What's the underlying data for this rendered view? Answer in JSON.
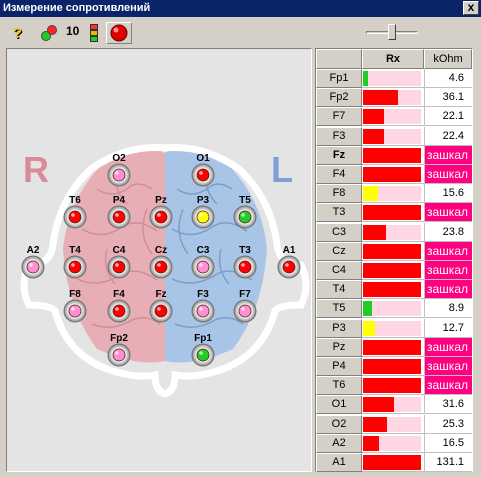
{
  "window": {
    "title": "Измерение сопротивлений",
    "close_label": "x"
  },
  "toolbar": {
    "count": "10"
  },
  "colors": {
    "red": "#ff0000",
    "yellow": "#ffff00",
    "green": "#22cc22",
    "pink": "#ffd6e3",
    "over": "#ff0080"
  },
  "head": {
    "left_label": "R",
    "right_label": "L"
  },
  "electrodes": [
    {
      "name": "O2",
      "color": "pink"
    },
    {
      "name": "O1",
      "color": "red"
    },
    {
      "name": "T6",
      "color": "red"
    },
    {
      "name": "P4",
      "color": "red"
    },
    {
      "name": "Pz",
      "color": "red"
    },
    {
      "name": "P3",
      "color": "yellow"
    },
    {
      "name": "T5",
      "color": "green"
    },
    {
      "name": "A2",
      "color": "pink"
    },
    {
      "name": "T4",
      "color": "red"
    },
    {
      "name": "C4",
      "color": "red"
    },
    {
      "name": "Cz",
      "color": "red"
    },
    {
      "name": "C3",
      "color": "pink"
    },
    {
      "name": "T3",
      "color": "red"
    },
    {
      "name": "A1",
      "color": "red"
    },
    {
      "name": "F8",
      "color": "pink"
    },
    {
      "name": "F4",
      "color": "red"
    },
    {
      "name": "Fz",
      "color": "red"
    },
    {
      "name": "F3",
      "color": "pink"
    },
    {
      "name": "F7",
      "color": "pink"
    },
    {
      "name": "Fp2",
      "color": "pink"
    },
    {
      "name": "Fp1",
      "color": "green"
    }
  ],
  "table": {
    "header": {
      "col1": "Rx",
      "col2": "kOhm"
    },
    "rows": [
      {
        "label": "Fp1",
        "value": "4.6",
        "fill": 0.09,
        "color": "green",
        "over": false,
        "bold": false
      },
      {
        "label": "Fp2",
        "value": "36.1",
        "fill": 0.6,
        "color": "red",
        "over": false,
        "bold": false
      },
      {
        "label": "F7",
        "value": "22.1",
        "fill": 0.37,
        "color": "red",
        "over": false,
        "bold": false
      },
      {
        "label": "F3",
        "value": "22.4",
        "fill": 0.37,
        "color": "red",
        "over": false,
        "bold": false
      },
      {
        "label": "Fz",
        "value": "зашкал",
        "fill": 1,
        "color": "red",
        "over": true,
        "bold": true
      },
      {
        "label": "F4",
        "value": "зашкал",
        "fill": 1,
        "color": "red",
        "over": true,
        "bold": false
      },
      {
        "label": "F8",
        "value": "15.6",
        "fill": 0.26,
        "color": "yellow",
        "over": false,
        "bold": false
      },
      {
        "label": "T3",
        "value": "зашкал",
        "fill": 1,
        "color": "red",
        "over": true,
        "bold": false
      },
      {
        "label": "C3",
        "value": "23.8",
        "fill": 0.4,
        "color": "red",
        "over": false,
        "bold": false
      },
      {
        "label": "Cz",
        "value": "зашкал",
        "fill": 1,
        "color": "red",
        "over": true,
        "bold": false
      },
      {
        "label": "C4",
        "value": "зашкал",
        "fill": 1,
        "color": "red",
        "over": true,
        "bold": false
      },
      {
        "label": "T4",
        "value": "зашкал",
        "fill": 1,
        "color": "red",
        "over": true,
        "bold": false
      },
      {
        "label": "T5",
        "value": "8.9",
        "fill": 0.15,
        "color": "green",
        "over": false,
        "bold": false
      },
      {
        "label": "P3",
        "value": "12.7",
        "fill": 0.21,
        "color": "yellow",
        "over": false,
        "bold": false
      },
      {
        "label": "Pz",
        "value": "зашкал",
        "fill": 1,
        "color": "red",
        "over": true,
        "bold": false
      },
      {
        "label": "P4",
        "value": "зашкал",
        "fill": 1,
        "color": "red",
        "over": true,
        "bold": false
      },
      {
        "label": "T6",
        "value": "зашкал",
        "fill": 1,
        "color": "red",
        "over": true,
        "bold": false
      },
      {
        "label": "O1",
        "value": "31.6",
        "fill": 0.53,
        "color": "red",
        "over": false,
        "bold": false
      },
      {
        "label": "O2",
        "value": "25.3",
        "fill": 0.42,
        "color": "red",
        "over": false,
        "bold": false
      },
      {
        "label": "A2",
        "value": "16.5",
        "fill": 0.27,
        "color": "red",
        "over": false,
        "bold": false
      },
      {
        "label": "A1",
        "value": "131.1",
        "fill": 1,
        "color": "red",
        "over": false,
        "bold": false
      }
    ]
  }
}
